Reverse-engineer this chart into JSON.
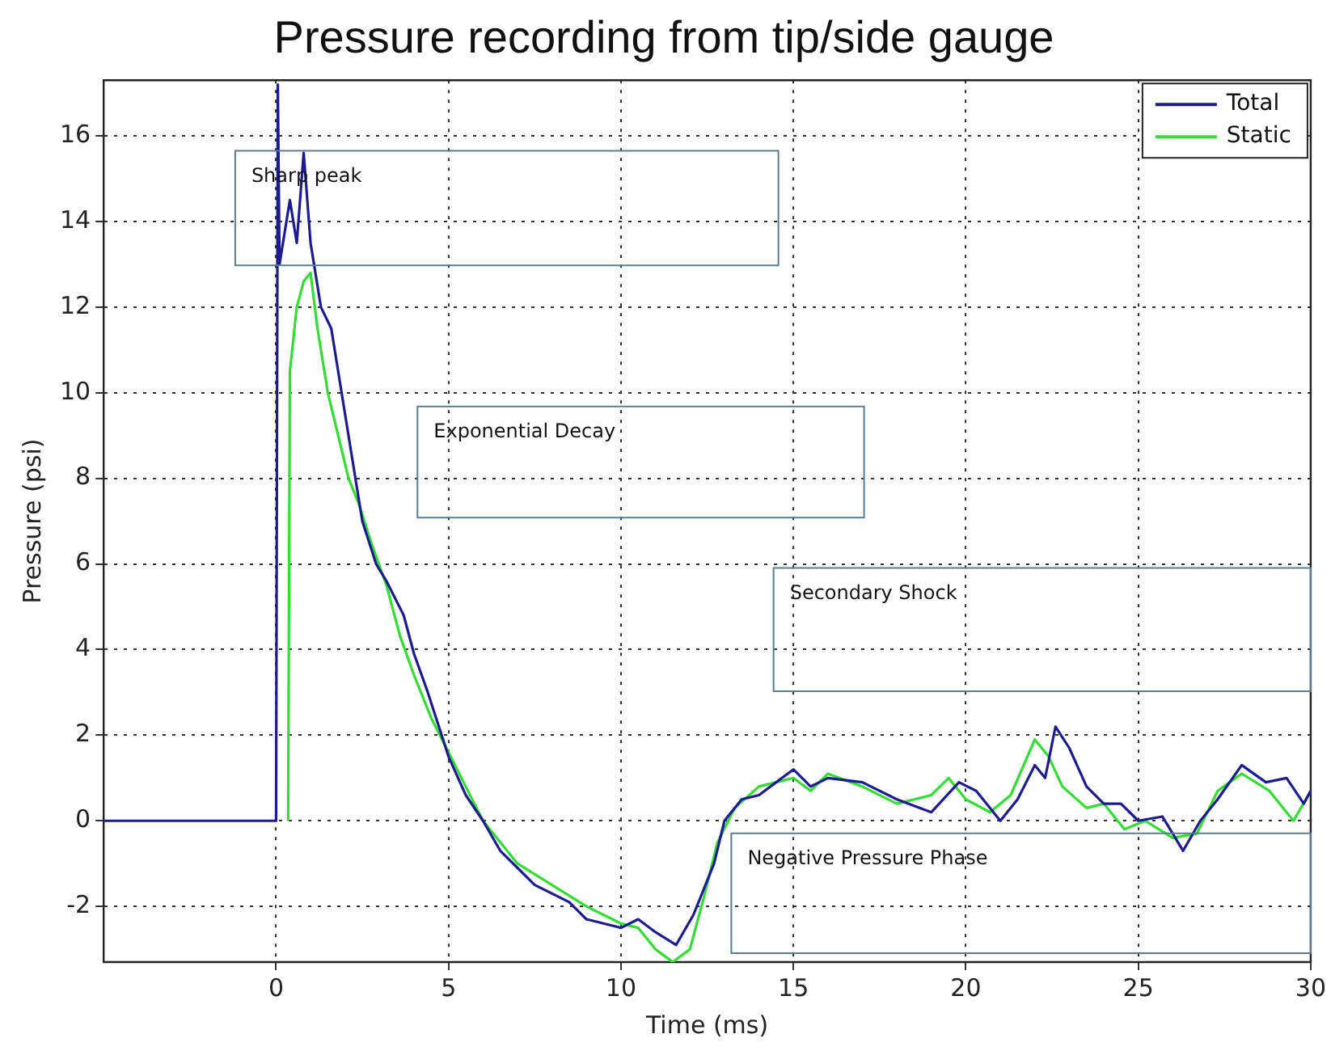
{
  "chart_data": {
    "type": "line",
    "title": "Pressure recording from tip/side gauge",
    "xlabel": "Time (ms)",
    "ylabel": "Pressure (psi)",
    "xlim": [
      -5,
      30
    ],
    "xticks": [
      0,
      5,
      10,
      15,
      20,
      25,
      30
    ],
    "ylim": [
      -3.3,
      17.3
    ],
    "yticks": [
      -2,
      0,
      2,
      4,
      6,
      8,
      10,
      12,
      14,
      16
    ],
    "grid": true,
    "legend": "top right",
    "marker": "none",
    "line_style": "solid",
    "annotations": [
      "Sharp peak",
      "Exponential Decay",
      "Secondary Shock",
      "Negative Pressure Phase"
    ],
    "series": [
      {
        "name": "Total",
        "color": "#1c1c8f",
        "x": [
          -5,
          -3,
          -1,
          0,
          0.05,
          0.1,
          0.4,
          0.6,
          0.8,
          1.0,
          1.3,
          1.6,
          1.9,
          2.2,
          2.5,
          2.9,
          3.2,
          3.7,
          4.0,
          4.4,
          4.8,
          5.0,
          5.5,
          6.0,
          6.5,
          7.0,
          7.5,
          8.5,
          9.0,
          10.0,
          10.5,
          11.0,
          11.6,
          12.1,
          12.7,
          13.0,
          13.5,
          14.0,
          14.5,
          15.0,
          15.5,
          16.0,
          17.0,
          18.0,
          19.0,
          19.8,
          20.3,
          21.0,
          21.5,
          22.0,
          22.3,
          22.6,
          23.0,
          23.5,
          24.0,
          24.5,
          25.0,
          25.7,
          26.3,
          26.8,
          27.3,
          28.0,
          28.7,
          29.3,
          29.8,
          30.0
        ],
        "values": [
          0,
          0,
          0,
          0,
          17.2,
          13,
          14.5,
          13.5,
          15.6,
          13.5,
          12,
          11.5,
          10,
          8.5,
          7,
          6,
          5.6,
          4.8,
          3.9,
          3,
          2,
          1.5,
          0.6,
          0,
          -0.7,
          -1.1,
          -1.5,
          -1.9,
          -2.3,
          -2.5,
          -2.3,
          -2.6,
          -2.9,
          -2.2,
          -1.0,
          0.0,
          0.5,
          0.6,
          0.9,
          1.2,
          0.8,
          1.0,
          0.9,
          0.5,
          0.2,
          0.9,
          0.7,
          0.0,
          0.5,
          1.3,
          1.0,
          2.2,
          1.7,
          0.8,
          0.4,
          0.4,
          0.0,
          0.1,
          -0.7,
          0.0,
          0.5,
          1.3,
          0.9,
          1.0,
          0.4,
          0.7
        ]
      },
      {
        "name": "Static",
        "color": "#33dd33",
        "x": [
          0.35,
          0.4,
          0.6,
          0.8,
          1.0,
          1.2,
          1.5,
          1.8,
          2.1,
          2.4,
          2.8,
          3.2,
          3.6,
          4.0,
          4.5,
          5.0,
          5.5,
          6.0,
          6.5,
          7.0,
          8.0,
          9.0,
          10.0,
          10.5,
          11.0,
          11.5,
          12.0,
          12.4,
          12.8,
          13.3,
          14.0,
          14.5,
          15.0,
          15.5,
          16.0,
          17.0,
          18.0,
          19.0,
          19.5,
          20.0,
          20.7,
          21.3,
          22.0,
          22.4,
          22.8,
          23.5,
          24.0,
          24.6,
          25.2,
          26.0,
          26.7,
          27.3,
          28.0,
          28.8,
          29.5,
          30.0
        ],
        "values": [
          0,
          10.5,
          12,
          12.6,
          12.8,
          11.5,
          10,
          9,
          8,
          7.4,
          6.4,
          5.5,
          4.3,
          3.4,
          2.4,
          1.6,
          0.8,
          0,
          -0.5,
          -1.0,
          -1.5,
          -2.0,
          -2.4,
          -2.5,
          -3.0,
          -3.3,
          -3.0,
          -1.8,
          -0.5,
          0.3,
          0.8,
          0.9,
          1.0,
          0.7,
          1.1,
          0.8,
          0.4,
          0.6,
          1.0,
          0.5,
          0.2,
          0.6,
          1.9,
          1.5,
          0.8,
          0.3,
          0.4,
          -0.2,
          0.0,
          -0.4,
          -0.3,
          0.7,
          1.1,
          0.7,
          0.0,
          0.7
        ]
      }
    ]
  }
}
